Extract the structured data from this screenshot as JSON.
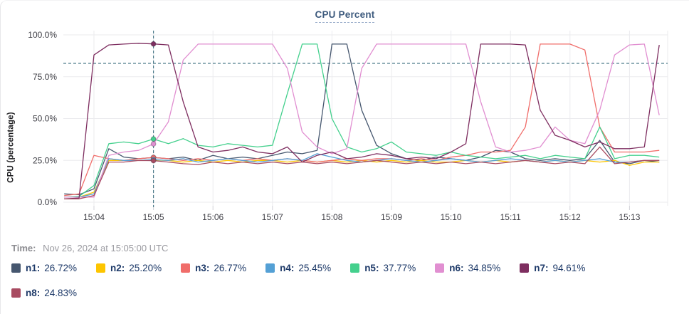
{
  "card": {
    "title": "CPU Percent",
    "time_label": "Time:",
    "time_value": "Nov 26, 2024 at 15:05:00 UTC"
  },
  "chart_data": {
    "type": "line",
    "title": "CPU Percent",
    "xlabel": "",
    "ylabel": "CPU (percentage)",
    "ylim": [
      0,
      100
    ],
    "grid": true,
    "legend_position": "bottom",
    "threshold_value": 83,
    "threshold_style": "dashed",
    "cursor": {
      "minute_from_first_tick": 1,
      "time_label": "15:05"
    },
    "y_ticks": [
      {
        "label": "100.0%",
        "value": 100
      },
      {
        "label": "75.0%",
        "value": 75
      },
      {
        "label": "50.0%",
        "value": 50
      },
      {
        "label": "25.0%",
        "value": 25
      },
      {
        "label": "0.0%",
        "value": 0
      }
    ],
    "x_ticks": [
      "15:04",
      "15:05",
      "15:06",
      "15:07",
      "15:08",
      "15:09",
      "15:10",
      "15:11",
      "15:12",
      "15:13"
    ],
    "x_axis": {
      "start_offset_minutes": -0.5,
      "step_minutes": 0.25,
      "unit": "time HH:MM UTC"
    },
    "series": [
      {
        "name": "n1",
        "label": "n1:",
        "color": "#46576f",
        "cursor_label": "26.72%",
        "cursor_value": 26.72,
        "values": [
          5,
          4.5,
          8,
          32,
          27,
          26,
          26.72,
          26,
          27,
          25,
          28,
          26,
          27,
          26,
          28,
          30,
          29,
          31,
          94.5,
          94.5,
          55,
          34,
          29,
          26,
          25,
          27,
          26,
          25,
          27,
          31,
          30,
          26,
          25,
          26,
          25,
          26,
          37,
          24,
          23,
          25,
          24
        ]
      },
      {
        "name": "n2",
        "label": "n2:",
        "color": "#fdc500",
        "cursor_label": "25.20%",
        "cursor_value": 25.2,
        "values": [
          3,
          3,
          6,
          25,
          25,
          25,
          25.2,
          25,
          24,
          25,
          24,
          25,
          24,
          25,
          25,
          24,
          25,
          24,
          25,
          24,
          25,
          24,
          25,
          24,
          25,
          24,
          24,
          25,
          24,
          25,
          24,
          25,
          24,
          25,
          24,
          25,
          24,
          25,
          22,
          24,
          24
        ]
      },
      {
        "name": "n3",
        "label": "n3:",
        "color": "#f06d6a",
        "cursor_label": "26.77%",
        "cursor_value": 26.77,
        "values": [
          4,
          5,
          28,
          26,
          25,
          26,
          26.77,
          26,
          25,
          26,
          25,
          26,
          25,
          26,
          25,
          26,
          25,
          24,
          25,
          26,
          25,
          26,
          26,
          25,
          26,
          25,
          27,
          28,
          30,
          30,
          31,
          45,
          94.5,
          94.5,
          94.5,
          91,
          45,
          30,
          30,
          30,
          31
        ]
      },
      {
        "name": "n4",
        "label": "n4:",
        "color": "#54a0d5",
        "cursor_label": "25.45%",
        "cursor_value": 25.45,
        "values": [
          3,
          3,
          5,
          26,
          25,
          25,
          25.45,
          25,
          26,
          24,
          25,
          26,
          25,
          24,
          25,
          26,
          25,
          29,
          27,
          25,
          24,
          25,
          26,
          25,
          24,
          25,
          26,
          25,
          24,
          25,
          26,
          25,
          24,
          25,
          24,
          25,
          26,
          24,
          24,
          25,
          25
        ]
      },
      {
        "name": "n5",
        "label": "n5:",
        "color": "#44d08d",
        "cursor_label": "37.77%",
        "cursor_value": 37.77,
        "values": [
          3,
          3.5,
          10,
          35,
          36,
          35,
          37.77,
          35,
          38,
          34,
          33,
          35,
          34,
          33,
          34,
          65,
          94.5,
          94.5,
          50,
          33,
          30,
          32,
          36,
          30,
          29,
          28,
          30,
          28,
          27,
          26,
          27,
          28,
          26,
          28,
          27,
          26,
          45,
          26,
          28,
          28,
          27
        ]
      },
      {
        "name": "n6",
        "label": "n6:",
        "color": "#e18fd1",
        "cursor_label": "34.85%",
        "cursor_value": 34.85,
        "values": [
          3,
          3,
          3,
          28,
          30,
          31,
          34.85,
          48,
          85,
          94.5,
          94.5,
          94.5,
          94.5,
          94.5,
          94.5,
          80,
          42,
          33,
          29,
          32,
          80,
          94.5,
          94.5,
          94.5,
          94.5,
          94.5,
          94.5,
          94.5,
          60,
          33,
          30,
          31,
          33,
          45,
          37,
          35,
          55,
          88,
          94,
          94.5,
          52
        ]
      },
      {
        "name": "n7",
        "label": "n7:",
        "color": "#7e2e60",
        "cursor_label": "94.61%",
        "cursor_value": 94.61,
        "values": [
          2,
          2.5,
          88,
          94,
          94.5,
          95,
          94.61,
          94,
          60,
          33,
          30,
          31,
          33,
          30,
          29,
          33,
          24,
          28,
          30,
          26,
          27,
          29,
          28,
          26,
          27,
          26,
          30,
          35,
          94.5,
          94.5,
          94.5,
          94,
          55,
          40,
          37,
          33,
          36,
          32,
          32,
          33,
          94
        ]
      },
      {
        "name": "n8",
        "label": "n8:",
        "color": "#a84b61",
        "cursor_label": "24.83%",
        "cursor_value": 24.83,
        "values": [
          2,
          2,
          4,
          24,
          24,
          25,
          24.83,
          24,
          23,
          22.5,
          24,
          23,
          24,
          23,
          24,
          23,
          24,
          23,
          24,
          23,
          24,
          25,
          24,
          23,
          24,
          23,
          24,
          23,
          24,
          23,
          24,
          25,
          24,
          23,
          24,
          23,
          33,
          23,
          24,
          25,
          25
        ]
      }
    ]
  }
}
